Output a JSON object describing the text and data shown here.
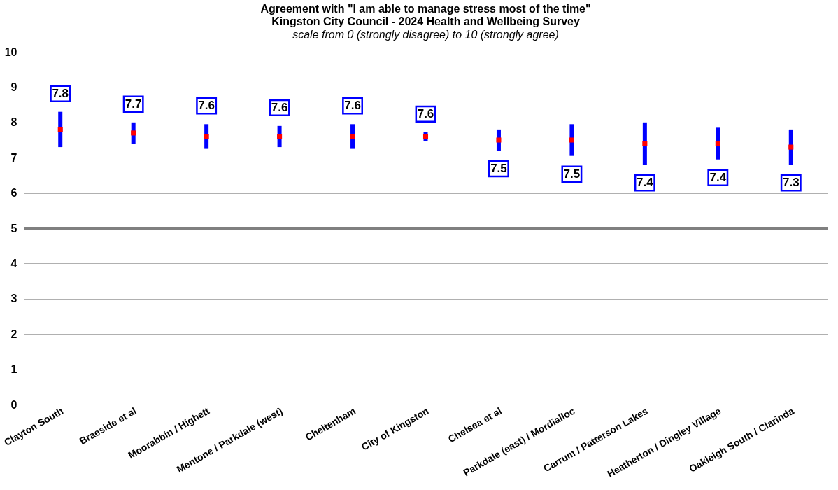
{
  "chart_data": {
    "type": "scatter",
    "title": [
      "Agreement with \"I am able to manage stress most of the time\"",
      "Kingston City Council - 2024 Health and Wellbeing Survey"
    ],
    "subtitle": "scale from 0 (strongly disagree) to 10 (strongly agree)",
    "categories": [
      "Clayton South",
      "Braeside et al",
      "Moorabbin / Highett",
      "Mentone / Parkdale (west)",
      "Cheltenham",
      "City of Kingston",
      "Chelsea et al",
      "Parkdale (east) / Mordialloc",
      "Carrum / Patterson Lakes",
      "Heatherton / Dingley Village",
      "Oakleigh South / Clarinda"
    ],
    "values": [
      7.8,
      7.7,
      7.6,
      7.6,
      7.6,
      7.6,
      7.5,
      7.5,
      7.4,
      7.4,
      7.3
    ],
    "errors": [
      0.5,
      0.3,
      0.35,
      0.3,
      0.35,
      0.12,
      0.3,
      0.45,
      0.6,
      0.45,
      0.5
    ],
    "color": "#ff0000",
    "marker": "square",
    "data_labels": true,
    "ylim": [
      0,
      10
    ],
    "yticks": [
      0,
      1,
      2,
      3,
      4,
      5,
      6,
      7,
      8,
      9,
      10
    ],
    "grid": "y",
    "ref_lines": [
      {
        "axis": "y",
        "value": 5,
        "color": "#808080"
      }
    ]
  }
}
